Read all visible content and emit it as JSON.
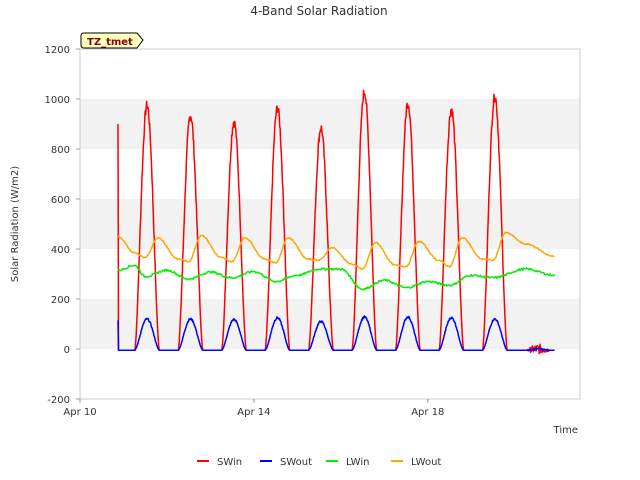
{
  "chart_data": {
    "type": "line",
    "title": "4-Band Solar Radiation",
    "xlabel": "Time",
    "ylabel": "Solar Radiation (W/m2)",
    "badge": "TZ_tmet",
    "ylim": [
      -200,
      1200
    ],
    "yticks": [
      -200,
      0,
      200,
      400,
      600,
      800,
      1000,
      1200
    ],
    "xlim": [
      "2024-04-10",
      "2024-04-21T12:00"
    ],
    "xticks": [
      {
        "value": "2024-04-10",
        "label": "Apr 10"
      },
      {
        "value": "2024-04-14",
        "label": "Apr 14"
      },
      {
        "value": "2024-04-18",
        "label": "Apr 18"
      }
    ],
    "x_start": "2024-04-10T21:00",
    "x_end": "2024-04-20T22:00",
    "grid": "horizontal bands",
    "legend_position": "bottom",
    "series": [
      {
        "name": "SWin",
        "color": "#ff0000",
        "daily_peaks": [
          {
            "x": "2024-04-10T21:00",
            "y": 900
          },
          {
            "x": "2024-04-11T14:00",
            "y": 975
          },
          {
            "x": "2024-04-12T13:00",
            "y": 935
          },
          {
            "x": "2024-04-13T13:00",
            "y": 910
          },
          {
            "x": "2024-04-14T13:00",
            "y": 965
          },
          {
            "x": "2024-04-15T14:00",
            "y": 885
          },
          {
            "x": "2024-04-16T13:00",
            "y": 1030
          },
          {
            "x": "2024-04-17T13:00",
            "y": 985
          },
          {
            "x": "2024-04-18T13:00",
            "y": 960
          },
          {
            "x": "2024-04-19T13:00",
            "y": 1010
          }
        ]
      },
      {
        "name": "SWout",
        "color": "#0000ff",
        "daily_peaks": [
          {
            "x": "2024-04-10T21:00",
            "y": 115
          },
          {
            "x": "2024-04-11T13:00",
            "y": 120
          },
          {
            "x": "2024-04-12T13:00",
            "y": 120
          },
          {
            "x": "2024-04-13T13:00",
            "y": 118
          },
          {
            "x": "2024-04-14T13:00",
            "y": 125
          },
          {
            "x": "2024-04-15T13:00",
            "y": 110
          },
          {
            "x": "2024-04-16T13:00",
            "y": 128
          },
          {
            "x": "2024-04-17T13:00",
            "y": 128
          },
          {
            "x": "2024-04-18T13:00",
            "y": 125
          },
          {
            "x": "2024-04-19T13:00",
            "y": 120
          }
        ]
      },
      {
        "name": "LWin",
        "color": "#00ee00",
        "points": [
          {
            "x": "2024-04-10T21:00",
            "y": 315
          },
          {
            "x": "2024-04-11T06:00",
            "y": 335
          },
          {
            "x": "2024-04-11T12:00",
            "y": 290
          },
          {
            "x": "2024-04-12T00:00",
            "y": 315
          },
          {
            "x": "2024-04-12T12:00",
            "y": 280
          },
          {
            "x": "2024-04-13T00:00",
            "y": 308
          },
          {
            "x": "2024-04-13T12:00",
            "y": 285
          },
          {
            "x": "2024-04-14T00:00",
            "y": 310
          },
          {
            "x": "2024-04-14T12:00",
            "y": 270
          },
          {
            "x": "2024-04-15T00:00",
            "y": 295
          },
          {
            "x": "2024-04-15T12:00",
            "y": 320
          },
          {
            "x": "2024-04-16T00:00",
            "y": 320
          },
          {
            "x": "2024-04-16T12:00",
            "y": 240
          },
          {
            "x": "2024-04-17T00:00",
            "y": 275
          },
          {
            "x": "2024-04-17T12:00",
            "y": 245
          },
          {
            "x": "2024-04-18T00:00",
            "y": 270
          },
          {
            "x": "2024-04-18T12:00",
            "y": 255
          },
          {
            "x": "2024-04-19T00:00",
            "y": 295
          },
          {
            "x": "2024-04-19T12:00",
            "y": 285
          },
          {
            "x": "2024-04-20T06:00",
            "y": 320
          },
          {
            "x": "2024-04-20T22:00",
            "y": 295
          }
        ]
      },
      {
        "name": "LWout",
        "color": "#ffa500",
        "points": [
          {
            "x": "2024-04-10T21:00",
            "y": 450
          },
          {
            "x": "2024-04-11T06:00",
            "y": 385
          },
          {
            "x": "2024-04-11T12:00",
            "y": 365
          },
          {
            "x": "2024-04-11T19:00",
            "y": 445
          },
          {
            "x": "2024-04-12T06:00",
            "y": 360
          },
          {
            "x": "2024-04-12T12:00",
            "y": 350
          },
          {
            "x": "2024-04-12T19:00",
            "y": 455
          },
          {
            "x": "2024-04-13T06:00",
            "y": 365
          },
          {
            "x": "2024-04-13T12:00",
            "y": 350
          },
          {
            "x": "2024-04-13T19:00",
            "y": 445
          },
          {
            "x": "2024-04-14T06:00",
            "y": 360
          },
          {
            "x": "2024-04-14T12:00",
            "y": 345
          },
          {
            "x": "2024-04-14T19:00",
            "y": 445
          },
          {
            "x": "2024-04-15T06:00",
            "y": 360
          },
          {
            "x": "2024-04-15T12:00",
            "y": 355
          },
          {
            "x": "2024-04-15T19:00",
            "y": 405
          },
          {
            "x": "2024-04-16T06:00",
            "y": 340
          },
          {
            "x": "2024-04-16T12:00",
            "y": 320
          },
          {
            "x": "2024-04-16T19:00",
            "y": 425
          },
          {
            "x": "2024-04-17T06:00",
            "y": 335
          },
          {
            "x": "2024-04-17T12:00",
            "y": 330
          },
          {
            "x": "2024-04-17T19:00",
            "y": 430
          },
          {
            "x": "2024-04-18T06:00",
            "y": 355
          },
          {
            "x": "2024-04-18T12:00",
            "y": 330
          },
          {
            "x": "2024-04-18T19:00",
            "y": 445
          },
          {
            "x": "2024-04-19T06:00",
            "y": 360
          },
          {
            "x": "2024-04-19T12:00",
            "y": 355
          },
          {
            "x": "2024-04-19T19:00",
            "y": 465
          },
          {
            "x": "2024-04-20T06:00",
            "y": 420
          },
          {
            "x": "2024-04-20T22:00",
            "y": 370
          }
        ]
      }
    ]
  }
}
